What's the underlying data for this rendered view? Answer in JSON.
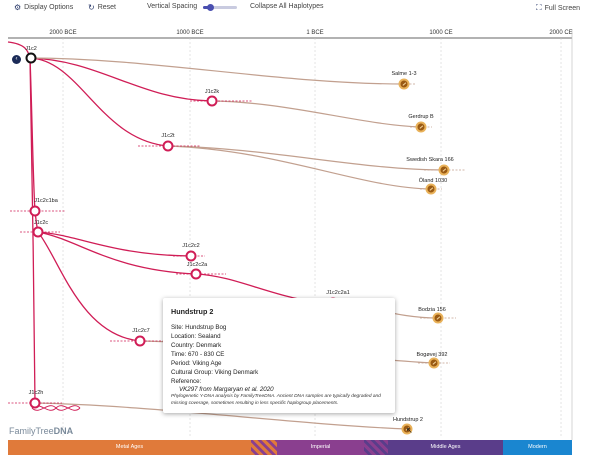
{
  "toolbar": {
    "display_options": "Display Options",
    "reset": "Reset",
    "vertical_spacing": "Vertical Spacing",
    "collapse_all": "Collapse All Haplotypes",
    "full_screen": "Full Screen",
    "vertical_spacing_level": 0.2
  },
  "axis": {
    "labels": [
      "2000 BCE",
      "1000 BCE",
      "1 BCE",
      "1000 CE",
      "2000 CE"
    ]
  },
  "nodes": {
    "j1c2": "J1c2",
    "j1c2k": "J1c2k",
    "j1c2t": "J1c2t",
    "j1c2c1ba": "J1c2c1ba",
    "j1c2c": "J1c2c",
    "j1c2c2": "J1c2c2",
    "j1c2c2a": "J1c2c2a",
    "j1c2c2a1": "J1c2c2a1",
    "j1c2c7": "J1c2c7",
    "j1c2h": "J1c2h"
  },
  "samples": {
    "salme": "Salme 1-3",
    "gerdrup": "Gerdrup B",
    "swedish_skara": "Swedish Skara 166",
    "oland": "Öland 1030",
    "bodzia": "Bodzia 156",
    "bogovej": "Bogøvej 392",
    "hundstrup": "Hundstrup 2"
  },
  "popup": {
    "title": "Hundstrup 2",
    "site": "Site: Hundstrup Bog",
    "location": "Location: Sealand",
    "country": "Country: Denmark",
    "time": "Time: 670 - 830 CE",
    "period": "Period: Viking Age",
    "cultural_group": "Cultural Group: Viking Denmark",
    "reference_label": "Reference:",
    "reference_value": "VK297 from Margaryan et al. 2020",
    "note": "Phylogenetic Y-DNA analysis by FamilyTreeDNA. Ancient DNA samples are typically degraded and missing coverage, sometimes resulting in less specific haplogroup placements."
  },
  "eras": {
    "metal_ages": "Metal Ages",
    "imperial": "Imperial",
    "middle_ages": "Middle Ages",
    "modern": "Modern"
  },
  "brand": {
    "family_tree": "FamilyTree",
    "dna": "DNA"
  },
  "colors": {
    "pink": "#d01d56",
    "tan": "#c2a08f",
    "gold": "#9a5a13",
    "metal_ages": "#e07a3a",
    "imperial": "#8a3f8f",
    "middle_ages": "#5a3d8a",
    "modern": "#1a86d0"
  }
}
